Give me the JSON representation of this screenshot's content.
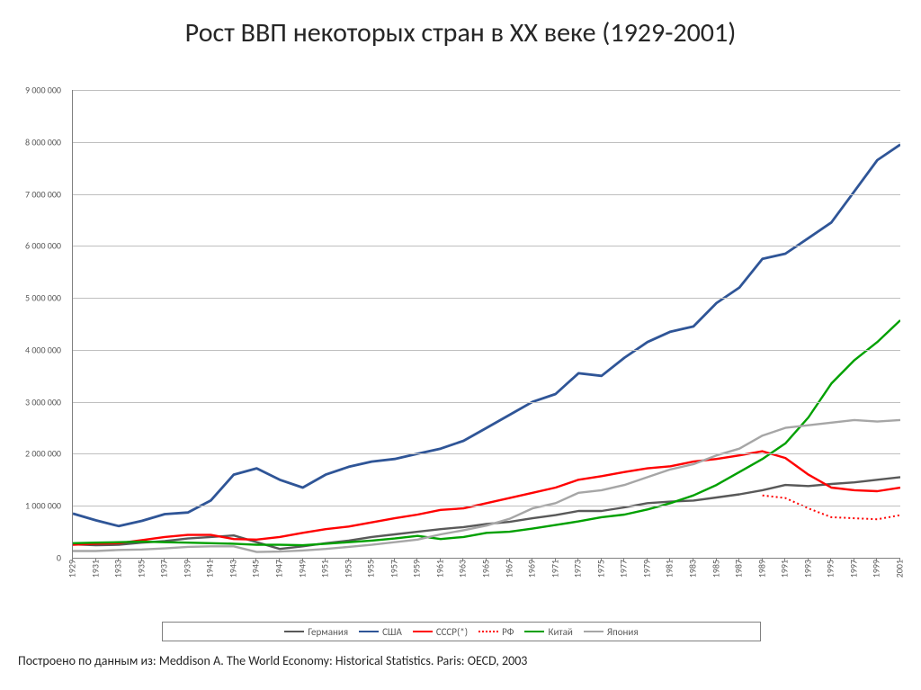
{
  "title": "Рост ВВП некоторых стран в XX веке (1929-2001)",
  "source": "Построено по данным из: Meddison A. The World Economy: Historical Statistics. Paris: OECD, 2003",
  "chart": {
    "type": "line",
    "background_color": "#ffffff",
    "grid_color": "#bfbfbf",
    "axis_color": "#808080",
    "title_fontsize": 30,
    "tick_fontsize": 10,
    "legend_fontsize": 11,
    "source_fontsize": 14,
    "ylim": [
      0,
      9000000
    ],
    "ytick_step": 1000000,
    "yticks": [
      0,
      1000000,
      2000000,
      3000000,
      4000000,
      5000000,
      6000000,
      7000000,
      8000000,
      9000000
    ],
    "ytick_labels": [
      "0",
      "1 000 000",
      "2 000 000",
      "3 000 000",
      "4 000 000",
      "5 000 000",
      "6 000 000",
      "7 000 000",
      "8 000 000",
      "9 000 000"
    ],
    "xlim": [
      1929,
      2001
    ],
    "xtick_step": 2,
    "xticks": [
      1929,
      1931,
      1933,
      1935,
      1937,
      1939,
      1941,
      1943,
      1945,
      1947,
      1949,
      1951,
      1953,
      1955,
      1957,
      1959,
      1961,
      1963,
      1965,
      1967,
      1969,
      1971,
      1973,
      1975,
      1977,
      1979,
      1981,
      1983,
      1985,
      1987,
      1989,
      1991,
      1993,
      1995,
      1997,
      1999,
      2001
    ],
    "legend_position": "bottom",
    "legend_border_color": "#808080",
    "series": [
      {
        "name": "Германия",
        "color": "#595959",
        "width": 2.4,
        "dash": "none",
        "x": [
          1929,
          1931,
          1933,
          1935,
          1937,
          1939,
          1941,
          1943,
          1945,
          1947,
          1949,
          1951,
          1953,
          1955,
          1957,
          1959,
          1961,
          1963,
          1965,
          1967,
          1969,
          1971,
          1973,
          1975,
          1977,
          1979,
          1981,
          1983,
          1985,
          1987,
          1989,
          1991,
          1993,
          1995,
          1997,
          1999,
          2001
        ],
        "y": [
          260000,
          240000,
          250000,
          290000,
          320000,
          370000,
          400000,
          430000,
          300000,
          170000,
          220000,
          280000,
          330000,
          400000,
          450000,
          500000,
          550000,
          590000,
          650000,
          690000,
          760000,
          820000,
          900000,
          900000,
          970000,
          1050000,
          1080000,
          1100000,
          1160000,
          1220000,
          1300000,
          1400000,
          1380000,
          1420000,
          1450000,
          1500000,
          1550000
        ]
      },
      {
        "name": "США",
        "color": "#2f5597",
        "width": 2.8,
        "dash": "none",
        "x": [
          1929,
          1931,
          1933,
          1935,
          1937,
          1939,
          1941,
          1943,
          1945,
          1947,
          1949,
          1951,
          1953,
          1955,
          1957,
          1959,
          1961,
          1963,
          1965,
          1967,
          1969,
          1971,
          1973,
          1975,
          1977,
          1979,
          1981,
          1983,
          1985,
          1987,
          1989,
          1991,
          1993,
          1995,
          1997,
          1999,
          2001
        ],
        "y": [
          850000,
          720000,
          610000,
          710000,
          840000,
          870000,
          1100000,
          1600000,
          1720000,
          1500000,
          1350000,
          1600000,
          1750000,
          1850000,
          1900000,
          2000000,
          2100000,
          2250000,
          2500000,
          2750000,
          3000000,
          3150000,
          3550000,
          3500000,
          3850000,
          4150000,
          4350000,
          4450000,
          4900000,
          5200000,
          5750000,
          5850000,
          6150000,
          6450000,
          7050000,
          7650000,
          7950000
        ]
      },
      {
        "name": "СССР(*)",
        "color": "#ff0000",
        "width": 2.4,
        "dash": "none",
        "x": [
          1929,
          1931,
          1933,
          1935,
          1937,
          1939,
          1941,
          1943,
          1945,
          1947,
          1949,
          1951,
          1953,
          1955,
          1957,
          1959,
          1961,
          1963,
          1965,
          1967,
          1969,
          1971,
          1973,
          1975,
          1977,
          1979,
          1981,
          1983,
          1985,
          1987,
          1989,
          1991,
          1993,
          1995,
          1997,
          1999,
          2001
        ],
        "y": [
          250000,
          270000,
          280000,
          340000,
          400000,
          440000,
          440000,
          360000,
          350000,
          400000,
          480000,
          550000,
          600000,
          680000,
          760000,
          830000,
          920000,
          950000,
          1050000,
          1150000,
          1250000,
          1350000,
          1500000,
          1570000,
          1650000,
          1720000,
          1760000,
          1850000,
          1900000,
          1970000,
          2050000,
          1920000,
          1600000,
          1350000,
          1300000,
          1280000,
          1350000
        ]
      },
      {
        "name": "РФ",
        "color": "#ff0000",
        "width": 2.0,
        "dash": "dotted",
        "x": [
          1989,
          1991,
          1993,
          1995,
          1997,
          1999,
          2001
        ],
        "y": [
          1200000,
          1150000,
          950000,
          780000,
          760000,
          740000,
          820000
        ]
      },
      {
        "name": "Китай",
        "color": "#00a000",
        "width": 2.4,
        "dash": "none",
        "x": [
          1929,
          1931,
          1933,
          1935,
          1937,
          1939,
          1941,
          1943,
          1945,
          1947,
          1949,
          1951,
          1953,
          1955,
          1957,
          1959,
          1961,
          1963,
          1965,
          1967,
          1969,
          1971,
          1973,
          1975,
          1977,
          1979,
          1981,
          1983,
          1985,
          1987,
          1989,
          1991,
          1993,
          1995,
          1997,
          1999,
          2001
        ],
        "y": [
          280000,
          290000,
          300000,
          310000,
          300000,
          290000,
          280000,
          270000,
          250000,
          250000,
          240000,
          270000,
          300000,
          330000,
          370000,
          420000,
          360000,
          400000,
          480000,
          500000,
          560000,
          630000,
          700000,
          780000,
          830000,
          930000,
          1050000,
          1200000,
          1400000,
          1650000,
          1900000,
          2200000,
          2700000,
          3350000,
          3800000,
          4150000,
          4570000
        ]
      },
      {
        "name": "Япония",
        "color": "#a6a6a6",
        "width": 2.4,
        "dash": "none",
        "x": [
          1929,
          1931,
          1933,
          1935,
          1937,
          1939,
          1941,
          1943,
          1945,
          1947,
          1949,
          1951,
          1953,
          1955,
          1957,
          1959,
          1961,
          1963,
          1965,
          1967,
          1969,
          1971,
          1973,
          1975,
          1977,
          1979,
          1981,
          1983,
          1985,
          1987,
          1989,
          1991,
          1993,
          1995,
          1997,
          1999,
          2001
        ],
        "y": [
          130000,
          130000,
          150000,
          160000,
          180000,
          210000,
          220000,
          220000,
          110000,
          120000,
          140000,
          170000,
          210000,
          250000,
          300000,
          350000,
          450000,
          530000,
          620000,
          750000,
          950000,
          1050000,
          1250000,
          1300000,
          1400000,
          1550000,
          1700000,
          1800000,
          1970000,
          2100000,
          2350000,
          2500000,
          2550000,
          2600000,
          2650000,
          2620000,
          2650000
        ]
      }
    ]
  }
}
